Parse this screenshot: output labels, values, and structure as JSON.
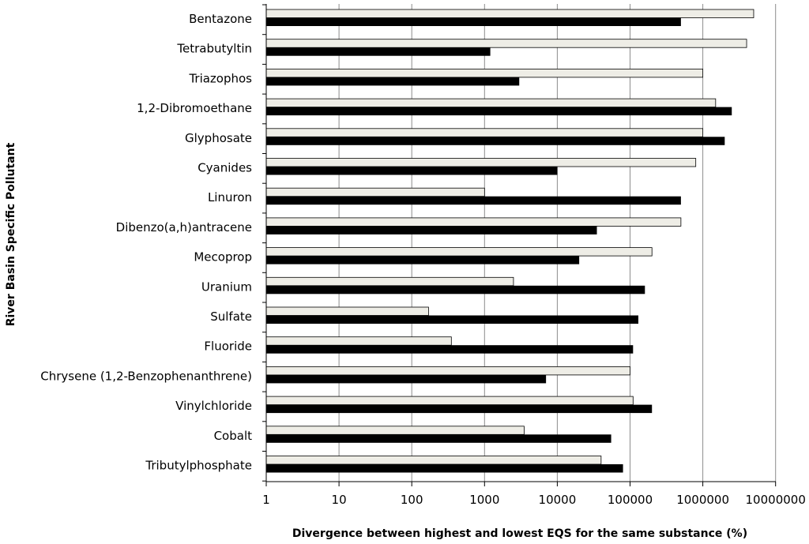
{
  "chart_data": {
    "type": "bar",
    "orientation": "horizontal",
    "title": "",
    "xlabel": "Divergence between highest and lowest EQS for the same substance (%)",
    "ylabel": "River Basin Specific Pollutant",
    "x_scale": "log",
    "xlim": [
      1,
      10000000
    ],
    "x_ticks": [
      "1",
      "10",
      "100",
      "1000",
      "10000",
      "100000",
      "1000000",
      "10000000"
    ],
    "grid": "vertical",
    "legend": "none",
    "categories": [
      "Bentazone",
      "Tetrabutyltin",
      "Triazophos",
      "1,2-Dibromoethane",
      "Glyphosate",
      "Cyanides",
      "Linuron",
      "Dibenzo(a,h)antracene",
      "Mecoprop",
      "Uranium",
      "Sulfate",
      "Fluoride",
      "Chrysene (1,2-Benzophenanthrene)",
      "Vinylchloride",
      "Cobalt",
      "Tributylphosphate"
    ],
    "series": [
      {
        "color": "#eeede6",
        "values": [
          5000000,
          4000000,
          1000000,
          1500000,
          1000000,
          800000,
          1000,
          500000,
          200000,
          2500,
          170,
          350,
          100000,
          110000,
          3500,
          40000
        ]
      },
      {
        "color": "#000000",
        "values": [
          500000,
          1200,
          3000,
          2500000,
          2000000,
          10000,
          500000,
          35000,
          20000,
          160000,
          130000,
          110000,
          7000,
          200000,
          55000,
          80000
        ]
      }
    ]
  }
}
